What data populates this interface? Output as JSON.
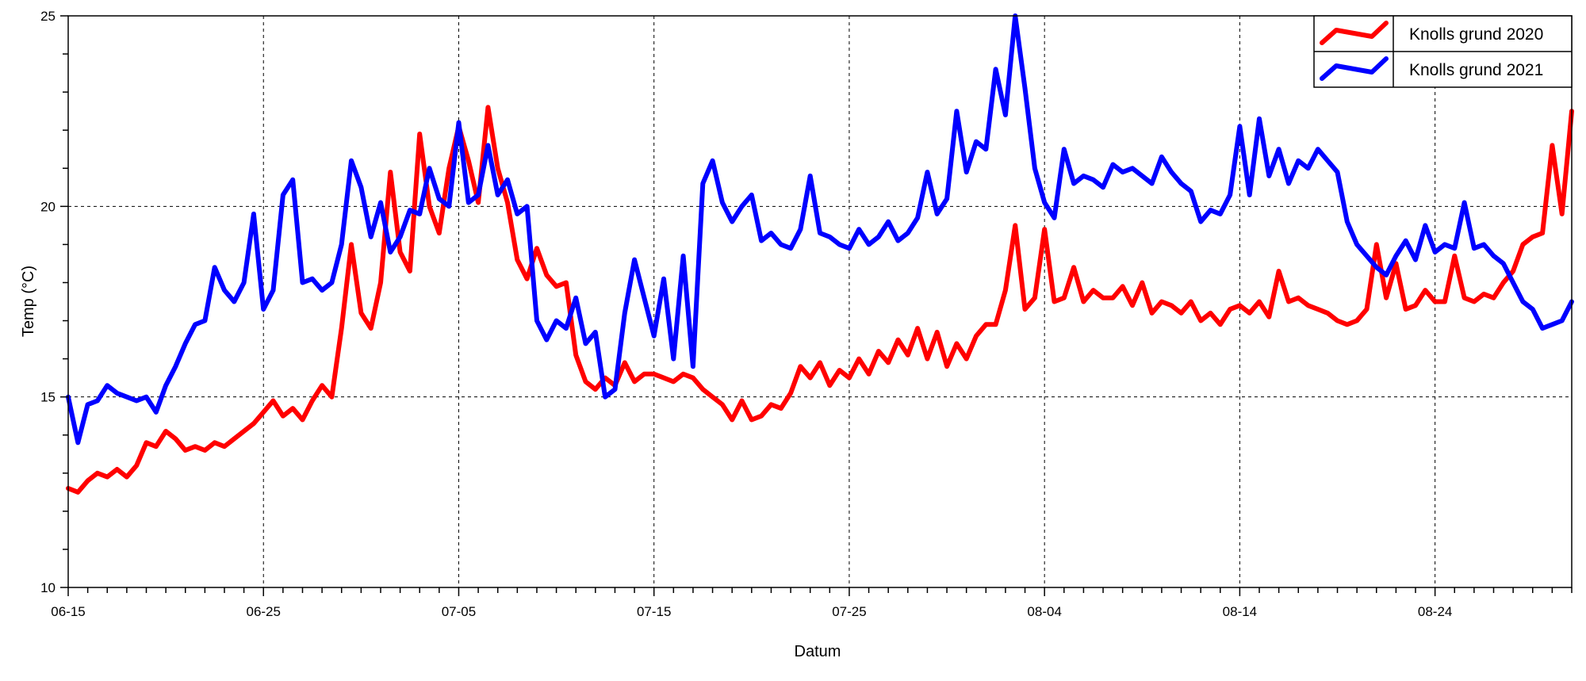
{
  "chart_data": {
    "type": "line",
    "title": "",
    "xlabel": "Datum",
    "ylabel": "Temp (°C)",
    "ylim": [
      10,
      25
    ],
    "yticks": [
      10,
      15,
      20,
      25
    ],
    "xlim_days": [
      0,
      77
    ],
    "xticks": [
      {
        "day": 0,
        "label": "06-15"
      },
      {
        "day": 10,
        "label": "06-25"
      },
      {
        "day": 20,
        "label": "07-05"
      },
      {
        "day": 30,
        "label": "07-15"
      },
      {
        "day": 40,
        "label": "07-25"
      },
      {
        "day": 50,
        "label": "08-04"
      },
      {
        "day": 60,
        "label": "08-14"
      },
      {
        "day": 70,
        "label": "08-24"
      }
    ],
    "grid": true,
    "legend_position": "top-right",
    "series": [
      {
        "name": "Knolls grund 2020",
        "color": "#ff0000",
        "points": [
          [
            0,
            12.6
          ],
          [
            0.5,
            12.5
          ],
          [
            1,
            12.8
          ],
          [
            1.5,
            13.0
          ],
          [
            2,
            12.9
          ],
          [
            2.5,
            13.1
          ],
          [
            3,
            12.9
          ],
          [
            3.5,
            13.2
          ],
          [
            4,
            13.8
          ],
          [
            4.5,
            13.7
          ],
          [
            5,
            14.1
          ],
          [
            5.5,
            13.9
          ],
          [
            6,
            13.6
          ],
          [
            6.5,
            13.7
          ],
          [
            7,
            13.6
          ],
          [
            7.5,
            13.8
          ],
          [
            8,
            13.7
          ],
          [
            8.5,
            13.9
          ],
          [
            9,
            14.1
          ],
          [
            9.5,
            14.3
          ],
          [
            10,
            14.6
          ],
          [
            10.5,
            14.9
          ],
          [
            11,
            14.5
          ],
          [
            11.5,
            14.7
          ],
          [
            12,
            14.4
          ],
          [
            12.5,
            14.9
          ],
          [
            13,
            15.3
          ],
          [
            13.5,
            15.0
          ],
          [
            14,
            16.8
          ],
          [
            14.5,
            19.0
          ],
          [
            15,
            17.2
          ],
          [
            15.5,
            16.8
          ],
          [
            16,
            18.0
          ],
          [
            16.5,
            20.9
          ],
          [
            17,
            18.8
          ],
          [
            17.5,
            18.3
          ],
          [
            18,
            21.9
          ],
          [
            18.5,
            20.0
          ],
          [
            19,
            19.3
          ],
          [
            19.5,
            21.0
          ],
          [
            20,
            22.1
          ],
          [
            20.5,
            21.2
          ],
          [
            21,
            20.1
          ],
          [
            21.5,
            22.6
          ],
          [
            22,
            21.0
          ],
          [
            22.5,
            20.1
          ],
          [
            23,
            18.6
          ],
          [
            23.5,
            18.1
          ],
          [
            24,
            18.9
          ],
          [
            24.5,
            18.2
          ],
          [
            25,
            17.9
          ],
          [
            25.5,
            18.0
          ],
          [
            26,
            16.1
          ],
          [
            26.5,
            15.4
          ],
          [
            27,
            15.2
          ],
          [
            27.5,
            15.5
          ],
          [
            28,
            15.3
          ],
          [
            28.5,
            15.9
          ],
          [
            29,
            15.4
          ],
          [
            29.5,
            15.6
          ],
          [
            30,
            15.6
          ],
          [
            30.5,
            15.5
          ],
          [
            31,
            15.4
          ],
          [
            31.5,
            15.6
          ],
          [
            32,
            15.5
          ],
          [
            32.5,
            15.2
          ],
          [
            33,
            15.0
          ],
          [
            33.5,
            14.8
          ],
          [
            34,
            14.4
          ],
          [
            34.5,
            14.9
          ],
          [
            35,
            14.4
          ],
          [
            35.5,
            14.5
          ],
          [
            36,
            14.8
          ],
          [
            36.5,
            14.7
          ],
          [
            37,
            15.1
          ],
          [
            37.5,
            15.8
          ],
          [
            38,
            15.5
          ],
          [
            38.5,
            15.9
          ],
          [
            39,
            15.3
          ],
          [
            39.5,
            15.7
          ],
          [
            40,
            15.5
          ],
          [
            40.5,
            16.0
          ],
          [
            41,
            15.6
          ],
          [
            41.5,
            16.2
          ],
          [
            42,
            15.9
          ],
          [
            42.5,
            16.5
          ],
          [
            43,
            16.1
          ],
          [
            43.5,
            16.8
          ],
          [
            44,
            16.0
          ],
          [
            44.5,
            16.7
          ],
          [
            45,
            15.8
          ],
          [
            45.5,
            16.4
          ],
          [
            46,
            16.0
          ],
          [
            46.5,
            16.6
          ],
          [
            47,
            16.9
          ],
          [
            47.5,
            16.9
          ],
          [
            48,
            17.8
          ],
          [
            48.5,
            19.5
          ],
          [
            49,
            17.3
          ],
          [
            49.5,
            17.6
          ],
          [
            50,
            19.4
          ],
          [
            50.5,
            17.5
          ],
          [
            51,
            17.6
          ],
          [
            51.5,
            18.4
          ],
          [
            52,
            17.5
          ],
          [
            52.5,
            17.8
          ],
          [
            53,
            17.6
          ],
          [
            53.5,
            17.6
          ],
          [
            54,
            17.9
          ],
          [
            54.5,
            17.4
          ],
          [
            55,
            18.0
          ],
          [
            55.5,
            17.2
          ],
          [
            56,
            17.5
          ],
          [
            56.5,
            17.4
          ],
          [
            57,
            17.2
          ],
          [
            57.5,
            17.5
          ],
          [
            58,
            17.0
          ],
          [
            58.5,
            17.2
          ],
          [
            59,
            16.9
          ],
          [
            59.5,
            17.3
          ],
          [
            60,
            17.4
          ],
          [
            60.5,
            17.2
          ],
          [
            61,
            17.5
          ],
          [
            61.5,
            17.1
          ],
          [
            62,
            18.3
          ],
          [
            62.5,
            17.5
          ],
          [
            63,
            17.6
          ],
          [
            63.5,
            17.4
          ],
          [
            64,
            17.3
          ],
          [
            64.5,
            17.2
          ],
          [
            65,
            17.0
          ],
          [
            65.5,
            16.9
          ],
          [
            66,
            17.0
          ],
          [
            66.5,
            17.3
          ],
          [
            67,
            19.0
          ],
          [
            67.5,
            17.6
          ],
          [
            68,
            18.5
          ],
          [
            68.5,
            17.3
          ],
          [
            69,
            17.4
          ],
          [
            69.5,
            17.8
          ],
          [
            70,
            17.5
          ],
          [
            70.5,
            17.5
          ],
          [
            71,
            18.7
          ],
          [
            71.5,
            17.6
          ],
          [
            72,
            17.5
          ],
          [
            72.5,
            17.7
          ],
          [
            73,
            17.6
          ],
          [
            73.5,
            18.0
          ],
          [
            74,
            18.3
          ],
          [
            74.5,
            19.0
          ],
          [
            75,
            19.2
          ],
          [
            75.5,
            19.3
          ],
          [
            76,
            21.6
          ],
          [
            76.5,
            19.8
          ],
          [
            77,
            22.5
          ]
        ]
      },
      {
        "name": "Knolls grund 2021",
        "color": "#0000ff",
        "points": [
          [
            0,
            15.0
          ],
          [
            0.5,
            13.8
          ],
          [
            1,
            14.8
          ],
          [
            1.5,
            14.9
          ],
          [
            2,
            15.3
          ],
          [
            2.5,
            15.1
          ],
          [
            3,
            15.0
          ],
          [
            3.5,
            14.9
          ],
          [
            4,
            15.0
          ],
          [
            4.5,
            14.6
          ],
          [
            5,
            15.3
          ],
          [
            5.5,
            15.8
          ],
          [
            6,
            16.4
          ],
          [
            6.5,
            16.9
          ],
          [
            7,
            17.0
          ],
          [
            7.5,
            18.4
          ],
          [
            8,
            17.8
          ],
          [
            8.5,
            17.5
          ],
          [
            9,
            18.0
          ],
          [
            9.5,
            19.8
          ],
          [
            10,
            17.3
          ],
          [
            10.5,
            17.8
          ],
          [
            11,
            20.3
          ],
          [
            11.5,
            20.7
          ],
          [
            12,
            18.0
          ],
          [
            12.5,
            18.1
          ],
          [
            13,
            17.8
          ],
          [
            13.5,
            18.0
          ],
          [
            14,
            19.0
          ],
          [
            14.5,
            21.2
          ],
          [
            15,
            20.5
          ],
          [
            15.5,
            19.2
          ],
          [
            16,
            20.1
          ],
          [
            16.5,
            18.8
          ],
          [
            17,
            19.2
          ],
          [
            17.5,
            19.9
          ],
          [
            18,
            19.8
          ],
          [
            18.5,
            21.0
          ],
          [
            19,
            20.2
          ],
          [
            19.5,
            20.0
          ],
          [
            20,
            22.2
          ],
          [
            20.5,
            20.1
          ],
          [
            21,
            20.3
          ],
          [
            21.5,
            21.6
          ],
          [
            22,
            20.3
          ],
          [
            22.5,
            20.7
          ],
          [
            23,
            19.8
          ],
          [
            23.5,
            20.0
          ],
          [
            24,
            17.0
          ],
          [
            24.5,
            16.5
          ],
          [
            25,
            17.0
          ],
          [
            25.5,
            16.8
          ],
          [
            26,
            17.6
          ],
          [
            26.5,
            16.4
          ],
          [
            27,
            16.7
          ],
          [
            27.5,
            15.0
          ],
          [
            28,
            15.2
          ],
          [
            28.5,
            17.2
          ],
          [
            29,
            18.6
          ],
          [
            29.5,
            17.6
          ],
          [
            30,
            16.6
          ],
          [
            30.5,
            18.1
          ],
          [
            31,
            16.0
          ],
          [
            31.5,
            18.7
          ],
          [
            32,
            15.8
          ],
          [
            32.5,
            20.6
          ],
          [
            33,
            21.2
          ],
          [
            33.5,
            20.1
          ],
          [
            34,
            19.6
          ],
          [
            34.5,
            20.0
          ],
          [
            35,
            20.3
          ],
          [
            35.5,
            19.1
          ],
          [
            36,
            19.3
          ],
          [
            36.5,
            19.0
          ],
          [
            37,
            18.9
          ],
          [
            37.5,
            19.4
          ],
          [
            38,
            20.8
          ],
          [
            38.5,
            19.3
          ],
          [
            39,
            19.2
          ],
          [
            39.5,
            19.0
          ],
          [
            40,
            18.9
          ],
          [
            40.5,
            19.4
          ],
          [
            41,
            19.0
          ],
          [
            41.5,
            19.2
          ],
          [
            42,
            19.6
          ],
          [
            42.5,
            19.1
          ],
          [
            43,
            19.3
          ],
          [
            43.5,
            19.7
          ],
          [
            44,
            20.9
          ],
          [
            44.5,
            19.8
          ],
          [
            45,
            20.2
          ],
          [
            45.5,
            22.5
          ],
          [
            46,
            20.9
          ],
          [
            46.5,
            21.7
          ],
          [
            47,
            21.5
          ],
          [
            47.5,
            23.6
          ],
          [
            48,
            22.4
          ],
          [
            48.5,
            25.0
          ],
          [
            49,
            23.1
          ],
          [
            49.5,
            21.0
          ],
          [
            50,
            20.1
          ],
          [
            50.5,
            19.7
          ],
          [
            51,
            21.5
          ],
          [
            51.5,
            20.6
          ],
          [
            52,
            20.8
          ],
          [
            52.5,
            20.7
          ],
          [
            53,
            20.5
          ],
          [
            53.5,
            21.1
          ],
          [
            54,
            20.9
          ],
          [
            54.5,
            21.0
          ],
          [
            55,
            20.8
          ],
          [
            55.5,
            20.6
          ],
          [
            56,
            21.3
          ],
          [
            56.5,
            20.9
          ],
          [
            57,
            20.6
          ],
          [
            57.5,
            20.4
          ],
          [
            58,
            19.6
          ],
          [
            58.5,
            19.9
          ],
          [
            59,
            19.8
          ],
          [
            59.5,
            20.3
          ],
          [
            60,
            22.1
          ],
          [
            60.5,
            20.3
          ],
          [
            61,
            22.3
          ],
          [
            61.5,
            20.8
          ],
          [
            62,
            21.5
          ],
          [
            62.5,
            20.6
          ],
          [
            63,
            21.2
          ],
          [
            63.5,
            21.0
          ],
          [
            64,
            21.5
          ],
          [
            64.5,
            21.2
          ],
          [
            65,
            20.9
          ],
          [
            65.5,
            19.6
          ],
          [
            66,
            19.0
          ],
          [
            66.5,
            18.7
          ],
          [
            67,
            18.4
          ],
          [
            67.5,
            18.2
          ],
          [
            68,
            18.7
          ],
          [
            68.5,
            19.1
          ],
          [
            69,
            18.6
          ],
          [
            69.5,
            19.5
          ],
          [
            70,
            18.8
          ],
          [
            70.5,
            19.0
          ],
          [
            71,
            18.9
          ],
          [
            71.5,
            20.1
          ],
          [
            72,
            18.9
          ],
          [
            72.5,
            19.0
          ],
          [
            73,
            18.7
          ],
          [
            73.5,
            18.5
          ],
          [
            74,
            18.0
          ],
          [
            74.5,
            17.5
          ],
          [
            75,
            17.3
          ],
          [
            75.5,
            16.8
          ],
          [
            76,
            16.9
          ],
          [
            76.5,
            17.0
          ],
          [
            77,
            17.5
          ]
        ]
      }
    ]
  }
}
